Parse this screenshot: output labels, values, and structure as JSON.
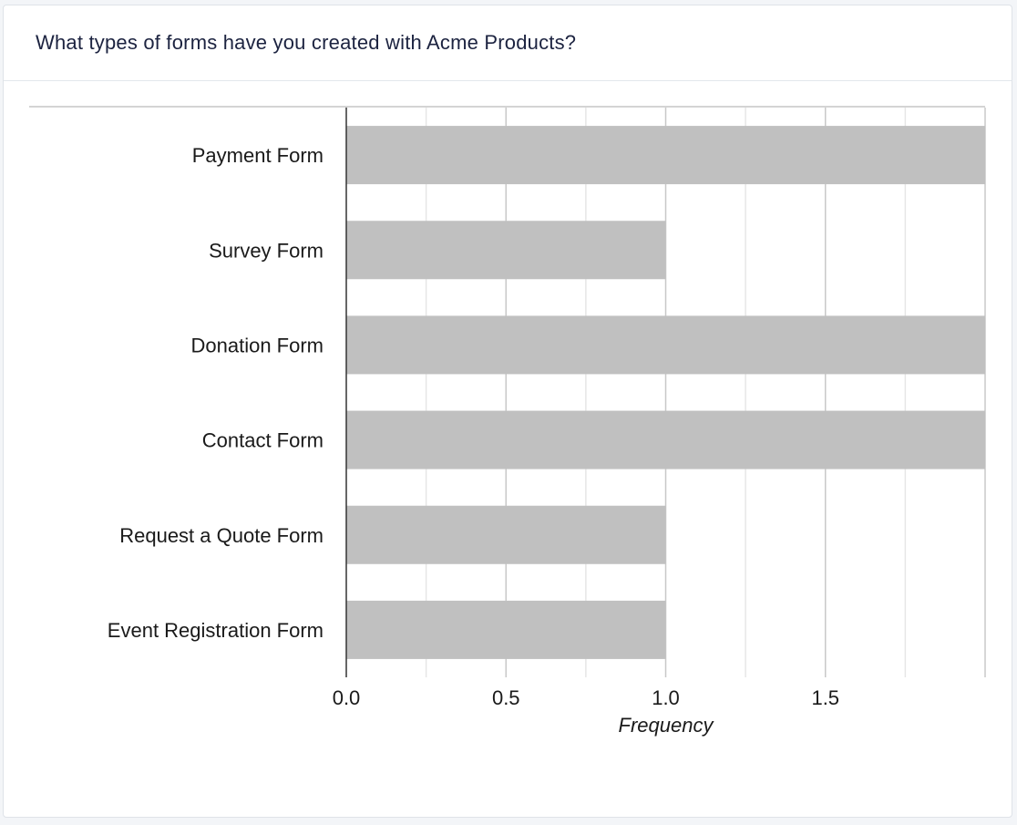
{
  "card": {
    "title": "What types of forms have you created with Acme Products?"
  },
  "chart_data": {
    "type": "bar",
    "orientation": "horizontal",
    "title": "What types of forms have you created with Acme Products?",
    "xlabel": "Frequency",
    "ylabel": "",
    "categories": [
      "Payment Form",
      "Survey Form",
      "Donation Form",
      "Contact Form",
      "Request a Quote Form",
      "Event Registration Form"
    ],
    "values": [
      2,
      1,
      2,
      2,
      1,
      1
    ],
    "xlim": [
      0,
      2
    ],
    "major_ticks": [
      0,
      0.5,
      1,
      1.5
    ],
    "tick_labels": [
      "0.0",
      "0.5",
      "1.0",
      "1.5"
    ],
    "grid": true,
    "legend": "none",
    "bar_color": "#c0c0c0"
  }
}
